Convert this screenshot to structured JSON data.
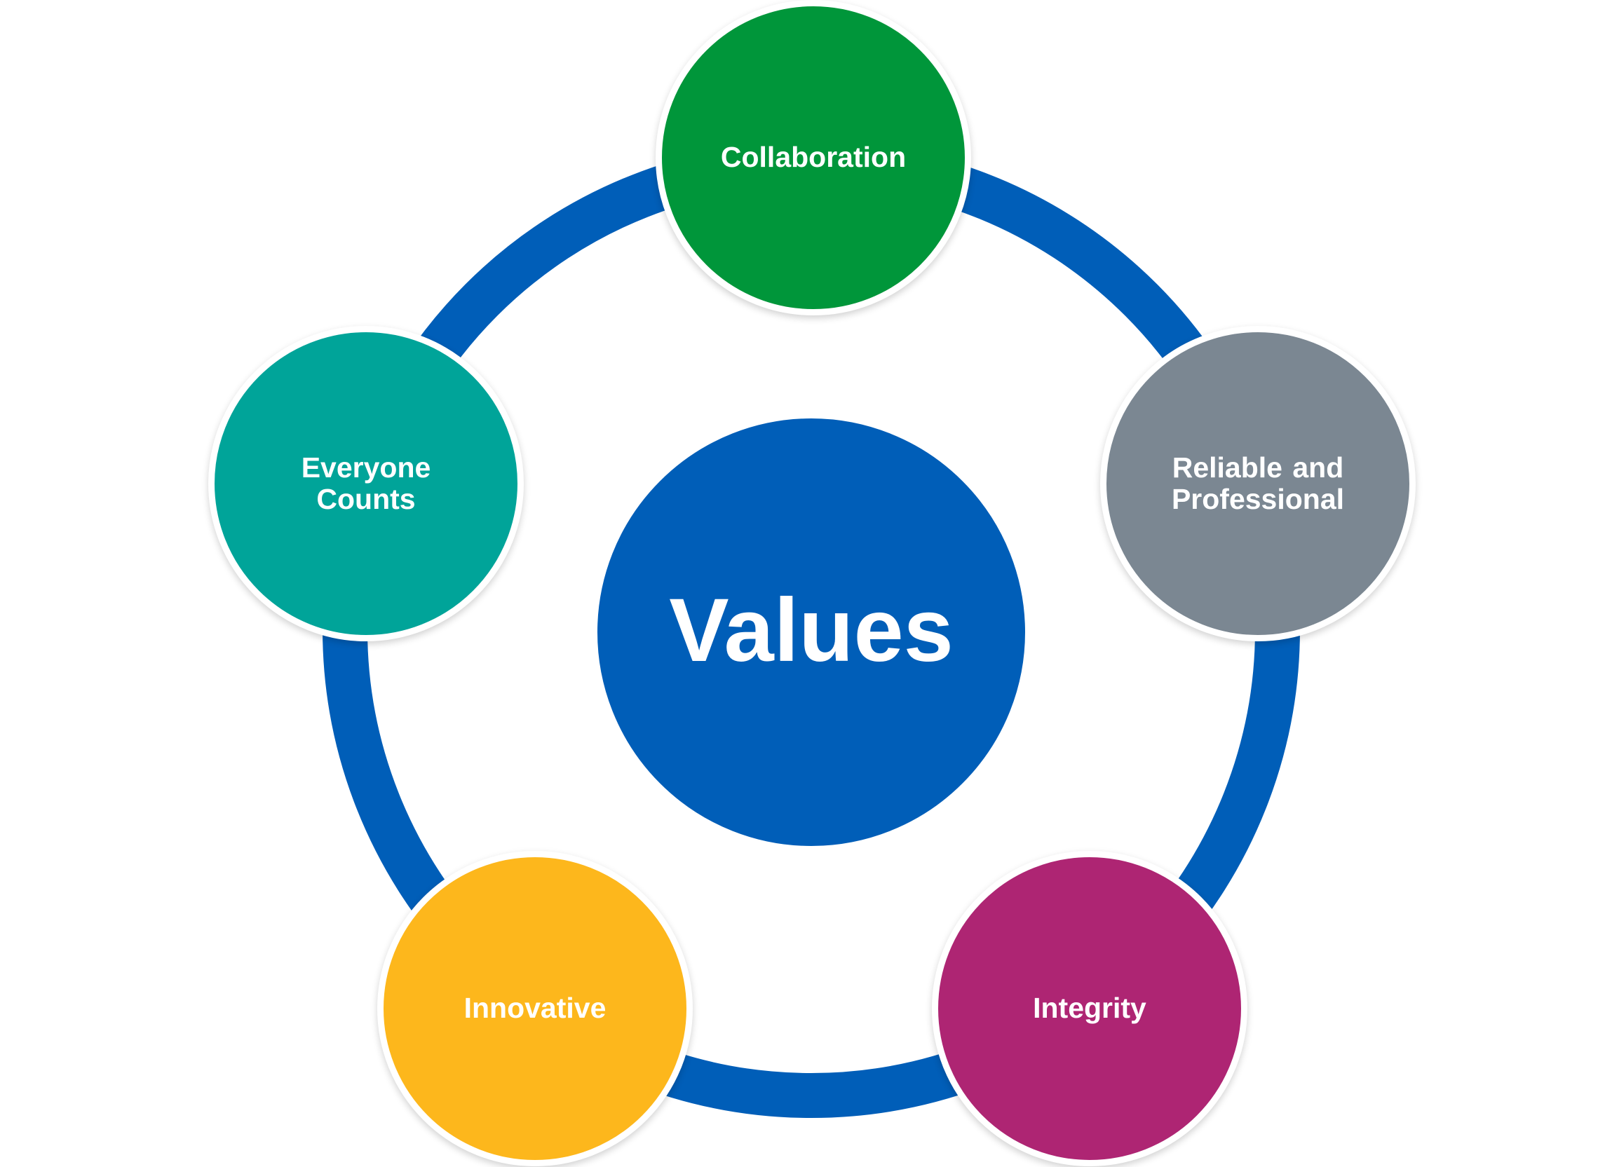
{
  "diagram": {
    "center": {
      "label": "Values",
      "color": "#005EB8"
    },
    "ring_color": "#005EB8",
    "nodes": [
      {
        "id": "collaboration",
        "label": "Collaboration",
        "color": "#00963A"
      },
      {
        "id": "reliable",
        "label": "Reliable  and\nProfessional",
        "color": "#7B8792"
      },
      {
        "id": "integrity",
        "label": "Integrity",
        "color": "#AE2573"
      },
      {
        "id": "innovative",
        "label": "Innovative",
        "color": "#FDB71C"
      },
      {
        "id": "everyone",
        "label": "Everyone\nCounts",
        "color": "#00A499"
      }
    ]
  }
}
